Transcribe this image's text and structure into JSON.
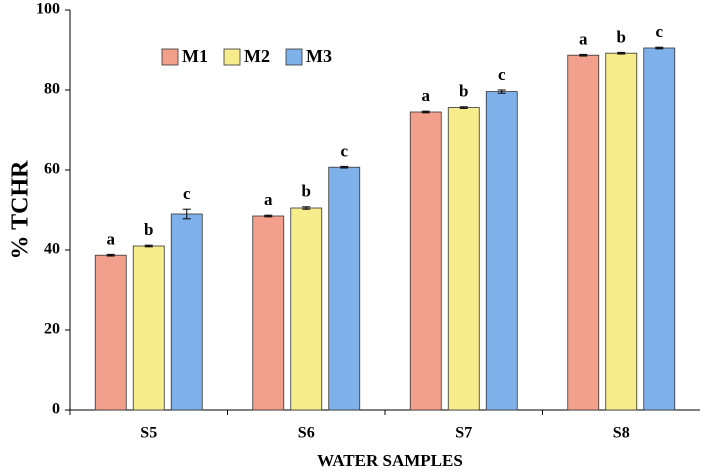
{
  "chart_data": {
    "type": "bar",
    "xlabel": "WATER SAMPLES",
    "ylabel": "% TCHR",
    "categories": [
      "S5",
      "S6",
      "S7",
      "S8"
    ],
    "series": [
      {
        "name": "M1",
        "color": "#f2a08c",
        "values": [
          38.7,
          48.5,
          74.5,
          88.7
        ],
        "errors": [
          0.2,
          0.2,
          0.2,
          0.2
        ],
        "labels": [
          "a",
          "a",
          "a",
          "a"
        ]
      },
      {
        "name": "M2",
        "color": "#f6ec8c",
        "values": [
          41,
          50.5,
          75.6,
          89.2
        ],
        "errors": [
          0.2,
          0.3,
          0.2,
          0.2
        ],
        "labels": [
          "b",
          "b",
          "b",
          "b"
        ]
      },
      {
        "name": "M3",
        "color": "#7eb0ea",
        "values": [
          49,
          60.7,
          79.6,
          90.5
        ],
        "errors": [
          1.2,
          0.2,
          0.4,
          0.2
        ],
        "labels": [
          "c",
          "c",
          "c",
          "c"
        ]
      }
    ],
    "ylim": [
      0,
      100
    ],
    "yticks": [
      0,
      20,
      40,
      60,
      80,
      100
    ],
    "grid": false,
    "legend": "top-left"
  }
}
